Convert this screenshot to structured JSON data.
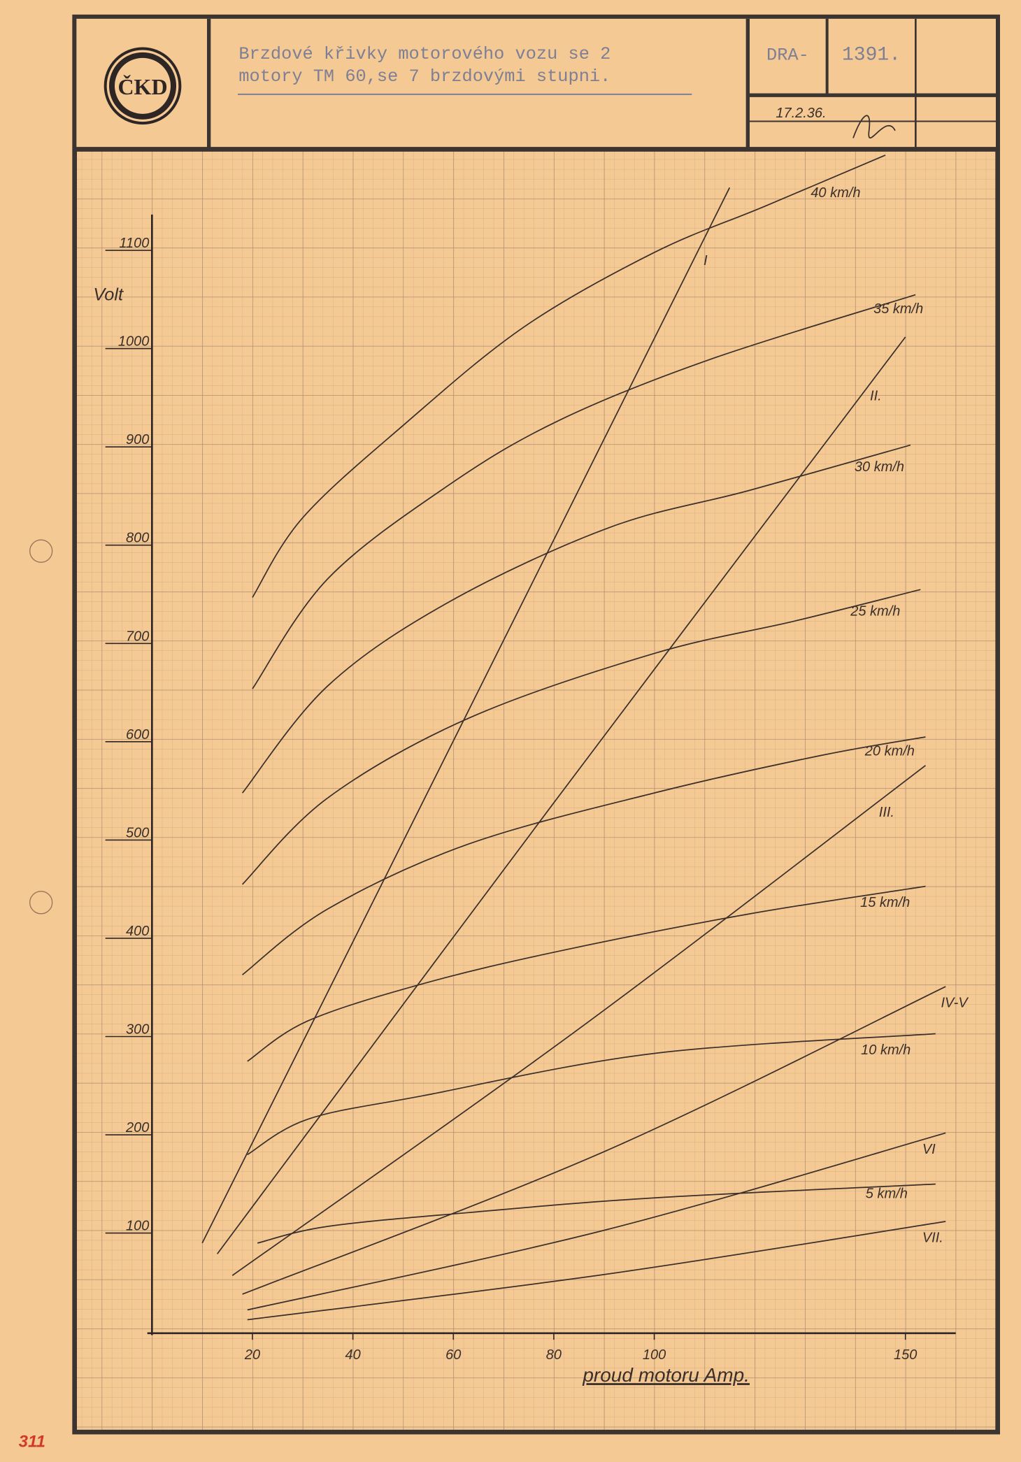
{
  "chart_data": {
    "type": "line",
    "title_lines": [
      "Brzdové křivky motorového vozu se 2",
      "motory TM 60,se 7 brzdovými stupni."
    ],
    "logo": "ČKD",
    "drawing_number": "DRA-",
    "sheet": "1391.",
    "date": "17.2.36.",
    "margin_note": "311",
    "xlabel": "proud motoru Amp.",
    "ylabel": "Volt",
    "xlim": [
      0,
      168
    ],
    "ylim": [
      0,
      1200
    ],
    "xticks": [
      20,
      40,
      60,
      80,
      100,
      150
    ],
    "yticks": [
      100,
      200,
      300,
      400,
      500,
      600,
      700,
      800,
      900,
      1000,
      1100
    ],
    "color": "#3a2f2a",
    "series": [
      {
        "name": "40 km/h",
        "x": [
          20,
          30,
          50,
          74,
          100,
          122,
          146
        ],
        "values": [
          744,
          825,
          919,
          1019,
          1095,
          1142,
          1194
        ]
      },
      {
        "name": "35 km/h",
        "x": [
          20,
          35,
          59,
          81,
          111,
          152
        ],
        "values": [
          651,
          763,
          858,
          924,
          986,
          1052
        ]
      },
      {
        "name": "30 km/h",
        "x": [
          18,
          35,
          59,
          91,
          119,
          151
        ],
        "values": [
          545,
          654,
          739,
          815,
          853,
          899
        ]
      },
      {
        "name": "25 km/h",
        "x": [
          18,
          35,
          63,
          100,
          128,
          153
        ],
        "values": [
          452,
          540,
          621,
          687,
          720,
          752
        ]
      },
      {
        "name": "20 km/h",
        "x": [
          18,
          35,
          63,
          100,
          133,
          154
        ],
        "values": [
          360,
          427,
          493,
          545,
          583,
          602
        ]
      },
      {
        "name": "15 km/h",
        "x": [
          19,
          31,
          54,
          81,
          119,
          154
        ],
        "values": [
          272,
          313,
          351,
          384,
          422,
          450
        ]
      },
      {
        "name": "10 km/h",
        "x": [
          19,
          31,
          54,
          100,
          156
        ],
        "values": [
          177,
          213,
          237,
          280,
          300
        ]
      },
      {
        "name": "5 km/h",
        "x": [
          21,
          35,
          63,
          100,
          156
        ],
        "values": [
          87,
          104,
          118,
          133,
          147
        ]
      },
      {
        "name": "I",
        "x": [
          10,
          60,
          115
        ],
        "values": [
          87,
          598,
          1161
        ]
      },
      {
        "name": "II.",
        "x": [
          13,
          80,
          150
        ],
        "values": [
          76,
          535,
          1009
        ]
      },
      {
        "name": "III.",
        "x": [
          16,
          85,
          154
        ],
        "values": [
          54,
          305,
          573
        ]
      },
      {
        "name": "IV-V",
        "x": [
          18,
          90,
          158
        ],
        "values": [
          35,
          180,
          348
        ]
      },
      {
        "name": "VI",
        "x": [
          19,
          90,
          158
        ],
        "values": [
          19,
          100,
          199
        ]
      },
      {
        "name": "VII.",
        "x": [
          19,
          90,
          158
        ],
        "values": [
          9,
          55,
          109
        ]
      }
    ]
  }
}
